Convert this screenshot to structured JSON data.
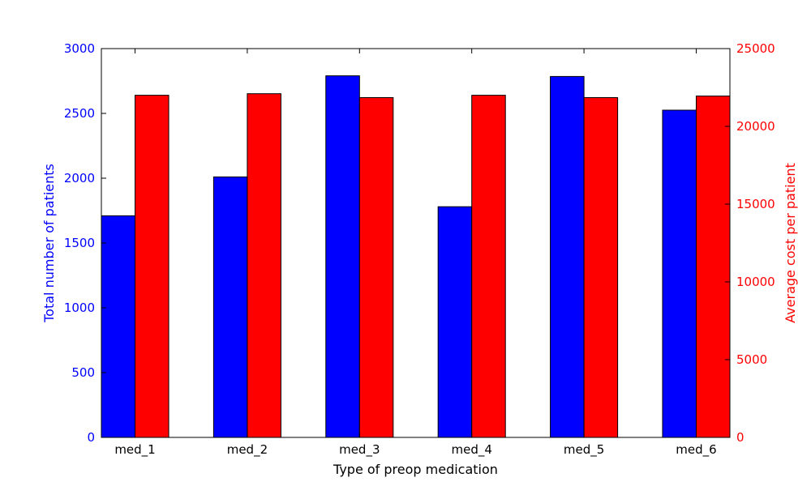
{
  "chart_data": {
    "type": "bar",
    "categories": [
      "med_1",
      "med_2",
      "med_3",
      "med_4",
      "med_5",
      "med_6"
    ],
    "xlabel": "Type of preop medication",
    "series": [
      {
        "name": "Total number of patients",
        "axis": "left",
        "color": "#0000ff",
        "values": [
          1710,
          2010,
          2790,
          1780,
          2785,
          2525
        ]
      },
      {
        "name": "Average cost per patient",
        "axis": "right",
        "color": "#ff0000",
        "values": [
          22000,
          22100,
          21850,
          22000,
          21850,
          21950
        ]
      }
    ],
    "y_left": {
      "label": "Total number of patients",
      "range": [
        0,
        3000
      ],
      "ticks": [
        "0",
        "500",
        "1000",
        "1500",
        "2000",
        "2500",
        "3000"
      ],
      "color": "#0000ff"
    },
    "y_right": {
      "label": "Average cost per patient",
      "range": [
        0,
        25000
      ],
      "ticks": [
        "0",
        "5000",
        "10000",
        "15000",
        "20000",
        "25000"
      ],
      "color": "#ff0000"
    },
    "grid": false
  }
}
